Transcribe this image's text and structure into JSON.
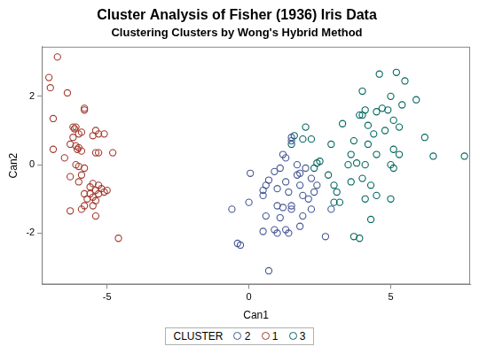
{
  "chart_data": {
    "type": "scatter",
    "title": "Cluster Analysis of Fisher (1936) Iris Data",
    "subtitle": "Clustering Clusters by Wong's Hybrid Method",
    "x_label": "Can1",
    "y_label": "Can2",
    "xlim": [
      -7.3,
      7.8
    ],
    "xticks": [
      -5,
      0,
      5
    ],
    "ylim": [
      -3.5,
      3.45
    ],
    "yticks": [
      -2,
      0,
      2
    ],
    "grid": false,
    "legend": "bottom",
    "legend_title": "CLUSTER",
    "marker": "circle",
    "series": [
      {
        "name": "2",
        "color": "#445694",
        "values": [
          [
            0.05,
            -0.25
          ],
          [
            -0.6,
            -1.3
          ],
          [
            -0.4,
            -2.3
          ],
          [
            -0.3,
            -2.35
          ],
          [
            0.0,
            -1.1
          ],
          [
            0.5,
            -0.9
          ],
          [
            0.5,
            -0.75
          ],
          [
            0.6,
            -0.6
          ],
          [
            0.7,
            -0.45
          ],
          [
            0.6,
            -1.5
          ],
          [
            0.5,
            -1.95
          ],
          [
            0.7,
            -3.1
          ],
          [
            0.9,
            -0.2
          ],
          [
            1.0,
            -0.7
          ],
          [
            1.0,
            -1.2
          ],
          [
            1.1,
            -0.1
          ],
          [
            1.2,
            0.3
          ],
          [
            1.3,
            0.2
          ],
          [
            1.3,
            -0.5
          ],
          [
            1.4,
            -0.8
          ],
          [
            1.5,
            -1.3
          ],
          [
            1.5,
            -1.2
          ],
          [
            1.2,
            -1.25
          ],
          [
            1.1,
            -1.55
          ],
          [
            1.3,
            -1.9
          ],
          [
            0.9,
            -1.9
          ],
          [
            1.0,
            -2.0
          ],
          [
            1.4,
            -2.0
          ],
          [
            1.5,
            0.8
          ],
          [
            1.5,
            0.7
          ],
          [
            1.7,
            0.0
          ],
          [
            1.7,
            -0.3
          ],
          [
            1.8,
            -0.25
          ],
          [
            1.8,
            -0.6
          ],
          [
            1.9,
            -0.9
          ],
          [
            1.9,
            -1.5
          ],
          [
            1.8,
            -1.8
          ],
          [
            2.0,
            -0.1
          ],
          [
            2.2,
            -0.4
          ],
          [
            2.3,
            -0.8
          ],
          [
            2.1,
            -1.0
          ],
          [
            2.2,
            -1.3
          ],
          [
            2.7,
            -2.1
          ],
          [
            2.9,
            -1.3
          ],
          [
            2.4,
            -0.6
          ]
        ]
      },
      {
        "name": "1",
        "color": "#a23a2e",
        "values": [
          [
            -6.75,
            3.15
          ],
          [
            -7.05,
            2.55
          ],
          [
            -7.0,
            2.25
          ],
          [
            -6.4,
            2.1
          ],
          [
            -5.8,
            1.65
          ],
          [
            -5.8,
            1.6
          ],
          [
            -6.9,
            1.35
          ],
          [
            -6.2,
            1.1
          ],
          [
            -6.1,
            1.1
          ],
          [
            -6.15,
            1.05
          ],
          [
            -5.9,
            0.95
          ],
          [
            -6.0,
            0.9
          ],
          [
            -5.4,
            1.0
          ],
          [
            -5.3,
            0.9
          ],
          [
            -5.5,
            0.85
          ],
          [
            -5.1,
            0.9
          ],
          [
            -6.2,
            0.8
          ],
          [
            -6.3,
            0.6
          ],
          [
            -6.1,
            0.55
          ],
          [
            -6.0,
            0.5
          ],
          [
            -6.05,
            0.45
          ],
          [
            -5.9,
            0.4
          ],
          [
            -6.9,
            0.45
          ],
          [
            -5.4,
            0.35
          ],
          [
            -5.3,
            0.35
          ],
          [
            -4.8,
            0.35
          ],
          [
            -6.5,
            0.2
          ],
          [
            -6.1,
            0.0
          ],
          [
            -6.0,
            -0.05
          ],
          [
            -5.8,
            -0.1
          ],
          [
            -5.9,
            -0.3
          ],
          [
            -6.3,
            -0.35
          ],
          [
            -6.0,
            -0.5
          ],
          [
            -5.5,
            -0.55
          ],
          [
            -5.3,
            -0.6
          ],
          [
            -5.6,
            -0.65
          ],
          [
            -5.2,
            -0.7
          ],
          [
            -5.0,
            -0.75
          ],
          [
            -5.4,
            -0.75
          ],
          [
            -5.6,
            -0.85
          ],
          [
            -5.8,
            -0.85
          ],
          [
            -5.3,
            -0.85
          ],
          [
            -5.5,
            -0.95
          ],
          [
            -5.1,
            -0.8
          ],
          [
            -5.7,
            -1.0
          ],
          [
            -5.4,
            -1.05
          ],
          [
            -5.8,
            -1.2
          ],
          [
            -5.5,
            -1.2
          ],
          [
            -6.3,
            -1.35
          ],
          [
            -5.9,
            -1.3
          ],
          [
            -5.4,
            -1.5
          ],
          [
            -4.6,
            -2.15
          ]
        ]
      },
      {
        "name": "3",
        "color": "#01665e",
        "values": [
          [
            1.6,
            0.85
          ],
          [
            1.5,
            0.6
          ],
          [
            2.0,
            1.1
          ],
          [
            1.9,
            0.75
          ],
          [
            2.2,
            0.75
          ],
          [
            2.4,
            0.05
          ],
          [
            2.5,
            0.1
          ],
          [
            2.3,
            -0.1
          ],
          [
            2.8,
            -0.3
          ],
          [
            2.9,
            0.6
          ],
          [
            3.0,
            -0.6
          ],
          [
            3.1,
            -0.8
          ],
          [
            3.2,
            -1.1
          ],
          [
            3.0,
            -1.1
          ],
          [
            3.3,
            1.2
          ],
          [
            3.5,
            0.0
          ],
          [
            3.6,
            -0.5
          ],
          [
            3.7,
            0.7
          ],
          [
            3.7,
            -2.1
          ],
          [
            3.9,
            -2.15
          ],
          [
            3.8,
            0.05
          ],
          [
            3.9,
            1.45
          ],
          [
            4.0,
            1.45
          ],
          [
            4.0,
            2.15
          ],
          [
            4.1,
            1.6
          ],
          [
            4.2,
            1.15
          ],
          [
            4.2,
            0.6
          ],
          [
            4.1,
            0.0
          ],
          [
            4.0,
            -0.4
          ],
          [
            4.3,
            -0.6
          ],
          [
            4.1,
            -1.0
          ],
          [
            4.3,
            -1.6
          ],
          [
            4.4,
            0.9
          ],
          [
            4.5,
            0.3
          ],
          [
            4.5,
            1.55
          ],
          [
            4.6,
            2.65
          ],
          [
            4.7,
            1.65
          ],
          [
            4.8,
            1.0
          ],
          [
            4.9,
            1.6
          ],
          [
            5.0,
            2.0
          ],
          [
            5.0,
            0.0
          ],
          [
            5.1,
            1.3
          ],
          [
            5.0,
            -1.0
          ],
          [
            5.1,
            0.45
          ],
          [
            5.2,
            2.7
          ],
          [
            5.3,
            0.3
          ],
          [
            5.3,
            1.1
          ],
          [
            5.5,
            2.45
          ],
          [
            5.4,
            1.75
          ],
          [
            5.9,
            1.9
          ],
          [
            6.2,
            0.8
          ],
          [
            6.5,
            0.25
          ],
          [
            7.6,
            0.25
          ],
          [
            5.1,
            -0.1
          ],
          [
            4.5,
            -0.9
          ],
          [
            3.6,
            0.3
          ]
        ]
      }
    ]
  }
}
